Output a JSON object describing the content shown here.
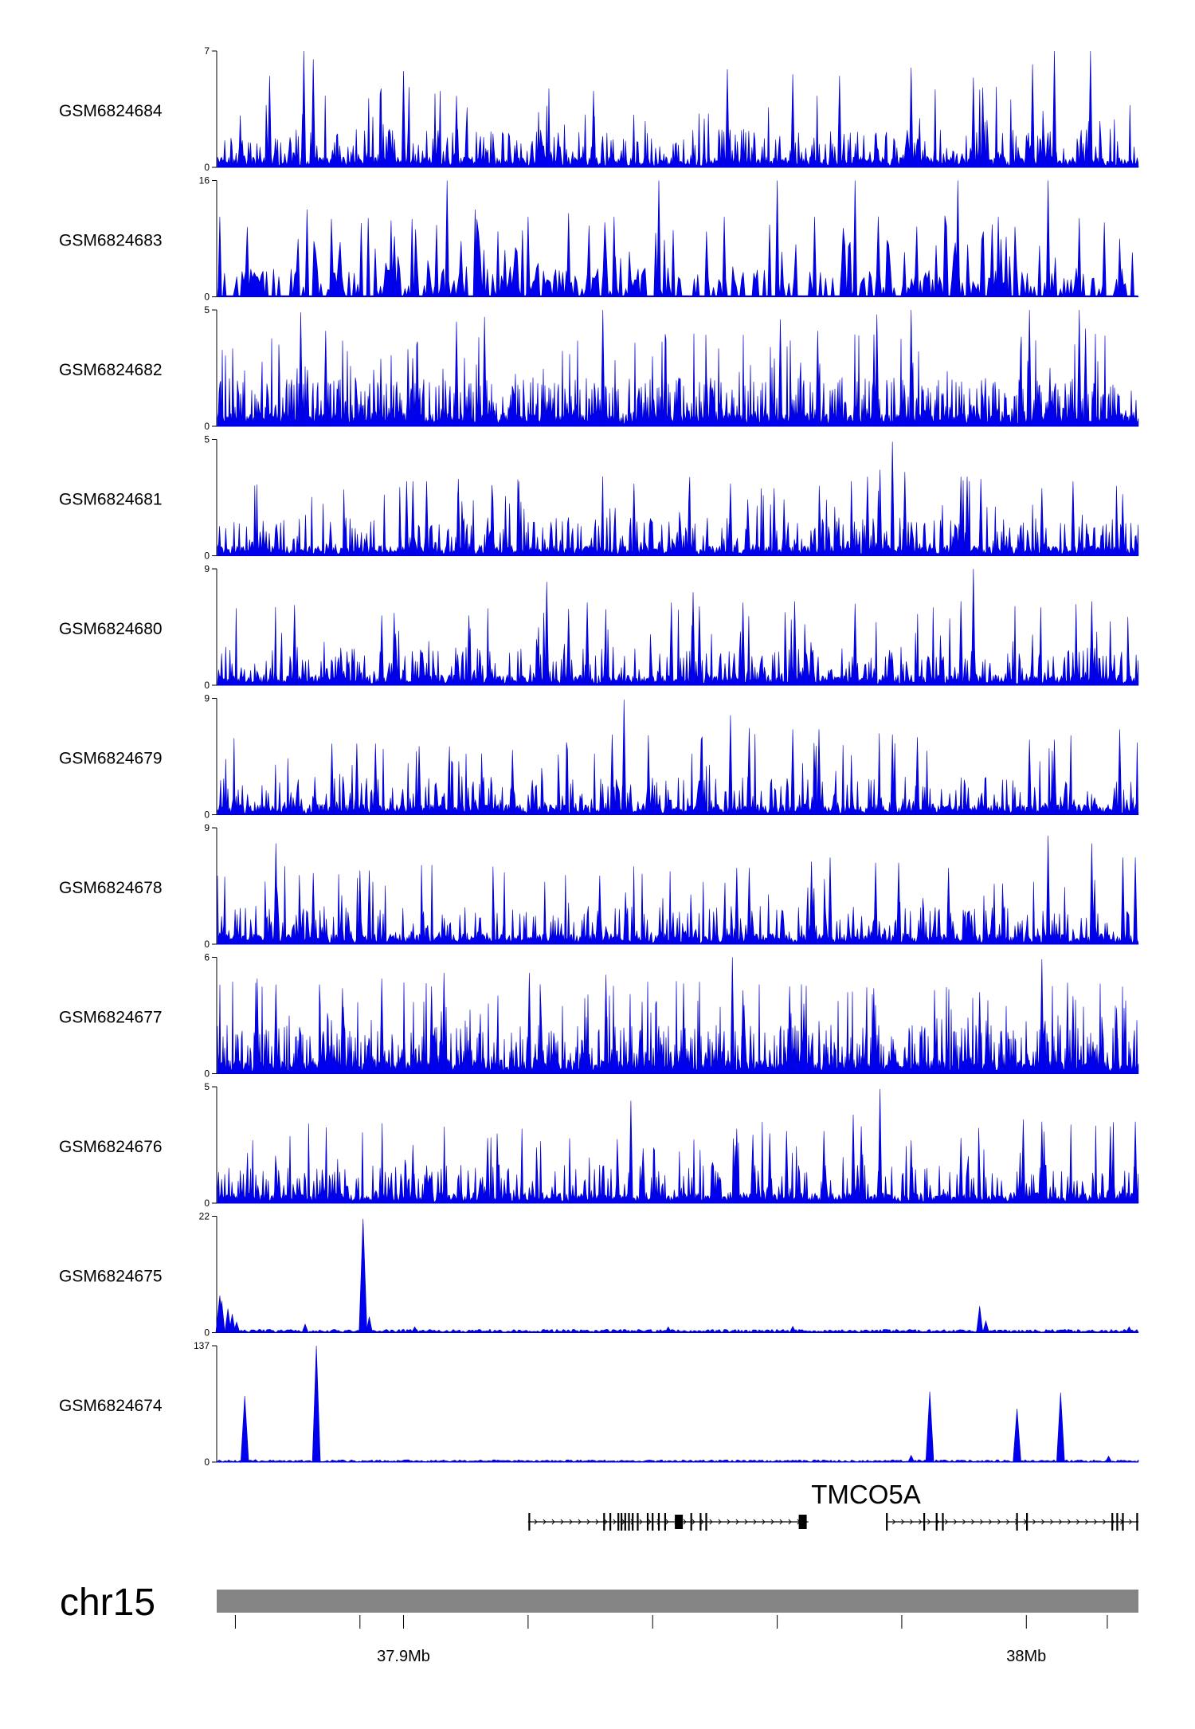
{
  "chart_data": {
    "type": "area",
    "title": "",
    "chromosome": "chr15",
    "x_unit": "Mb",
    "xlim": [
      37.87,
      38.018
    ],
    "gene": {
      "name": "TMCO5A",
      "strand": "+",
      "transcripts": [
        {
          "start": 37.92,
          "end": 37.965,
          "exons": [
            37.9202,
            37.9322,
            37.9332,
            37.9345,
            37.935,
            37.9356,
            37.9362,
            37.9368,
            37.9376,
            37.9392,
            37.94,
            37.941,
            37.942,
            37.9442,
            37.9462,
            37.9477,
            37.9486,
            37.9641
          ]
        },
        {
          "start": 37.9775,
          "end": 38.018,
          "exons": [
            37.9776,
            37.9836,
            37.9856,
            37.9866,
            37.9985,
            38.0001,
            38.0138,
            38.0146,
            38.0155,
            38.0178
          ]
        }
      ]
    },
    "axis_ticks": [
      {
        "pos": 37.873,
        "label": ""
      },
      {
        "pos": 37.893,
        "label": ""
      },
      {
        "pos": 37.9,
        "label": "37.9Mb"
      },
      {
        "pos": 37.92,
        "label": ""
      },
      {
        "pos": 37.94,
        "label": ""
      },
      {
        "pos": 37.96,
        "label": ""
      },
      {
        "pos": 37.98,
        "label": ""
      },
      {
        "pos": 38.0,
        "label": "38Mb"
      },
      {
        "pos": 38.013,
        "label": ""
      }
    ],
    "series": [
      {
        "name": "GSM6824684",
        "ymax": 7,
        "ymin": 0,
        "style": "noisy",
        "peaks": [
          [
            37.884,
            7
          ],
          [
            37.8855,
            6.5
          ],
          [
            37.9,
            5.8
          ],
          [
            37.8785,
            5.5
          ],
          [
            37.952,
            5.9
          ],
          [
            37.9815,
            6
          ],
          [
            38.0045,
            7
          ],
          [
            38.001,
            6.2
          ],
          [
            37.9915,
            5.4
          ],
          [
            37.9625,
            5.6
          ],
          [
            38.0103,
            7
          ],
          [
            37.97,
            5.5
          ],
          [
            37.993,
            4.8
          ],
          [
            37.9085,
            4.3
          ],
          [
            37.9305,
            4.6
          ]
        ]
      },
      {
        "name": "GSM6824683",
        "ymax": 16,
        "ymin": 0,
        "style": "sparse",
        "peaks": [
          [
            37.8705,
            11
          ],
          [
            37.8845,
            12
          ],
          [
            37.898,
            10.5
          ],
          [
            37.907,
            16
          ],
          [
            37.9115,
            12
          ],
          [
            37.92,
            11
          ],
          [
            37.9265,
            11.5
          ],
          [
            37.9338,
            11
          ],
          [
            37.941,
            16
          ],
          [
            37.9515,
            11
          ],
          [
            37.96,
            16
          ],
          [
            37.966,
            11
          ],
          [
            37.9725,
            16
          ],
          [
            37.989,
            16
          ],
          [
            37.9955,
            11
          ],
          [
            38.0035,
            16
          ],
          [
            38.0085,
            10.8
          ],
          [
            38.015,
            8
          ]
        ]
      },
      {
        "name": "GSM6824682",
        "ymax": 5,
        "ymin": 0,
        "style": "dense",
        "peaks": [
          [
            37.8835,
            4.9
          ],
          [
            37.8875,
            4.1
          ],
          [
            37.9085,
            4.5
          ],
          [
            37.913,
            4.7
          ],
          [
            37.932,
            5
          ],
          [
            37.9605,
            4.6
          ],
          [
            37.976,
            4.8
          ],
          [
            37.9815,
            5
          ],
          [
            38.0005,
            5
          ],
          [
            38.0085,
            5
          ],
          [
            38.0095,
            4.2
          ],
          [
            37.9665,
            4.1
          ]
        ]
      },
      {
        "name": "GSM6824681",
        "ymax": 5,
        "ymin": 0,
        "style": "noisy",
        "peaks": [
          [
            37.9785,
            4.9
          ],
          [
            37.9745,
            3.4
          ],
          [
            37.9805,
            3.6
          ],
          [
            37.9765,
            3.7
          ],
          [
            37.9895,
            3.4
          ],
          [
            37.9905,
            3.4
          ],
          [
            37.9927,
            3.3
          ],
          [
            37.937,
            3.1
          ],
          [
            37.9525,
            3.1
          ],
          [
            37.9005,
            3.2
          ],
          [
            37.9015,
            3.2
          ],
          [
            37.9037,
            3.2
          ],
          [
            37.9088,
            3.3
          ],
          [
            37.9185,
            3.2
          ],
          [
            38.0075,
            3.2
          ],
          [
            38.0025,
            2.9
          ],
          [
            37.9595,
            2.9
          ]
        ]
      },
      {
        "name": "GSM6824680",
        "ymax": 9,
        "ymin": 0,
        "style": "noisy",
        "peaks": [
          [
            37.9915,
            9
          ],
          [
            37.9895,
            6.5
          ],
          [
            37.923,
            8
          ],
          [
            37.9295,
            6.4
          ],
          [
            37.943,
            6.4
          ],
          [
            37.9465,
            7.2
          ],
          [
            37.9475,
            6.1
          ],
          [
            37.9545,
            6.4
          ],
          [
            37.9628,
            6.5
          ],
          [
            37.9725,
            6.3
          ],
          [
            38.0105,
            6.5
          ],
          [
            37.8825,
            6.2
          ],
          [
            37.8985,
            5.6
          ],
          [
            37.8965,
            5.4
          ],
          [
            37.9265,
            5.9
          ],
          [
            37.9105,
            5.4
          ]
        ]
      },
      {
        "name": "GSM6824679",
        "ymax": 9,
        "ymin": 0,
        "style": "noisy",
        "peaks": [
          [
            37.9354,
            8.9
          ],
          [
            37.9335,
            6.2
          ],
          [
            37.9525,
            7.7
          ],
          [
            37.9555,
            6.7
          ],
          [
            37.9625,
            6.6
          ],
          [
            37.9667,
            6.6
          ],
          [
            37.9785,
            6.2
          ],
          [
            37.9825,
            6
          ],
          [
            38.0045,
            5.8
          ],
          [
            38.015,
            6.6
          ],
          [
            37.8925,
            5.5
          ],
          [
            37.8885,
            5.5
          ],
          [
            37.8955,
            5.5
          ],
          [
            37.9025,
            5.3
          ],
          [
            37.9175,
            5
          ],
          [
            38.0005,
            5.8
          ]
        ]
      },
      {
        "name": "GSM6824678",
        "ymax": 9,
        "ymin": 0,
        "style": "noisy",
        "peaks": [
          [
            37.8795,
            7.8
          ],
          [
            37.893,
            5.7
          ],
          [
            37.8945,
            5.7
          ],
          [
            37.9315,
            5.3
          ],
          [
            37.9535,
            5.9
          ],
          [
            37.9555,
            5.9
          ],
          [
            37.9655,
            6.4
          ],
          [
            37.9685,
            6.7
          ],
          [
            37.9758,
            6.3
          ],
          [
            37.9795,
            6.3
          ],
          [
            37.9875,
            5.9
          ],
          [
            38.0035,
            8.4
          ],
          [
            38.0105,
            7.8
          ],
          [
            38.0155,
            6.7
          ],
          [
            38.0175,
            6.7
          ],
          [
            37.8855,
            5.5
          ]
        ]
      },
      {
        "name": "GSM6824677",
        "ymax": 6,
        "ymin": 0,
        "style": "dense",
        "peaks": [
          [
            37.8765,
            4.9
          ],
          [
            37.8795,
            4.6
          ],
          [
            37.8902,
            4.4
          ],
          [
            37.8965,
            4.9
          ],
          [
            37.9045,
            4.5
          ],
          [
            37.9065,
            5.2
          ],
          [
            37.9202,
            5.2
          ],
          [
            37.9325,
            5.1
          ],
          [
            37.9528,
            6
          ],
          [
            37.9545,
            4.3
          ],
          [
            37.962,
            4.5
          ],
          [
            37.9755,
            4.4
          ],
          [
            37.9925,
            4.2
          ],
          [
            38.0025,
            5.9
          ],
          [
            38.0075,
            4
          ],
          [
            38.0145,
            3.4
          ]
        ]
      },
      {
        "name": "GSM6824676",
        "ymax": 5,
        "ymin": 0,
        "style": "noisy",
        "peaks": [
          [
            37.9765,
            4.9
          ],
          [
            37.9365,
            4.4
          ],
          [
            37.9722,
            3.8
          ],
          [
            37.9675,
            3.1
          ],
          [
            37.9535,
            3.2
          ],
          [
            37.9588,
            3
          ],
          [
            37.9615,
            3.1
          ],
          [
            37.9735,
            3.3
          ],
          [
            37.9815,
            2.7
          ],
          [
            37.9895,
            2.8
          ],
          [
            37.9995,
            3.6
          ],
          [
            38.0025,
            3.5
          ],
          [
            38.0135,
            3.3
          ],
          [
            38.0175,
            3.5
          ],
          [
            37.9135,
            2.8
          ],
          [
            37.9015,
            2.5
          ]
        ]
      },
      {
        "name": "GSM6824675",
        "ymax": 22,
        "ymin": 0,
        "style": "baseline",
        "baseline": 0.35,
        "peaks": [
          [
            37.8705,
            7
          ],
          [
            37.8708,
            6
          ],
          [
            37.8718,
            4.5
          ],
          [
            37.8725,
            3.5
          ],
          [
            37.8732,
            2
          ],
          [
            37.8842,
            1.6
          ],
          [
            37.8935,
            21.5
          ],
          [
            37.8945,
            3
          ],
          [
            37.9018,
            1.1
          ],
          [
            37.9425,
            1.1
          ],
          [
            37.9625,
            1.2
          ],
          [
            37.9925,
            5
          ],
          [
            37.9935,
            2.2
          ],
          [
            38.0165,
            1.1
          ]
        ]
      },
      {
        "name": "GSM6824674",
        "ymax": 137,
        "ymin": 0,
        "style": "baseline",
        "baseline": 1.5,
        "peaks": [
          [
            37.8745,
            78
          ],
          [
            37.886,
            137
          ],
          [
            37.9845,
            83
          ],
          [
            37.9985,
            63
          ],
          [
            38.0055,
            82
          ],
          [
            37.9815,
            8
          ],
          [
            38.0132,
            7
          ],
          [
            37.8762,
            3
          ]
        ]
      }
    ]
  }
}
